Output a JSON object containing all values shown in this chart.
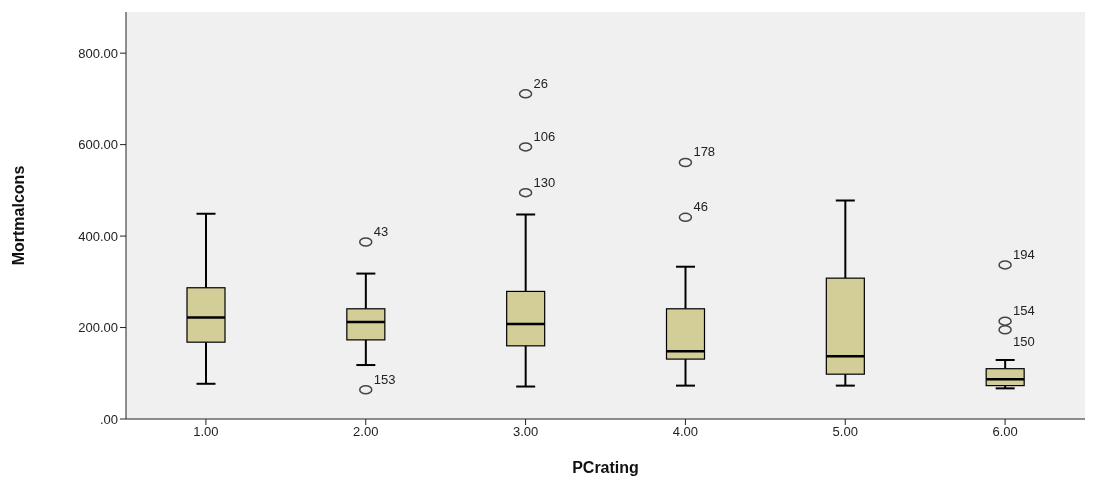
{
  "chart_data": {
    "type": "box",
    "xlabel": "PCrating",
    "ylabel": "Mortmalcons",
    "categories": [
      "1.00",
      "2.00",
      "3.00",
      "4.00",
      "5.00",
      "6.00"
    ],
    "color": "#d3cd97",
    "boxes": [
      {
        "low": 77,
        "q1": 168,
        "median": 222,
        "q3": 287,
        "high": 449
      },
      {
        "low": 118,
        "q1": 173,
        "median": 212,
        "q3": 241,
        "high": 318,
        "outliers": [
          387,
          64
        ]
      },
      {
        "low": 71,
        "q1": 160,
        "median": 208,
        "q3": 279,
        "high": 447,
        "outliers": [
          495,
          595,
          711
        ]
      },
      {
        "low": 73,
        "q1": 131,
        "median": 148,
        "q3": 241,
        "high": 333,
        "outliers": [
          441,
          561
        ]
      },
      {
        "low": 73,
        "q1": 98,
        "median": 137,
        "q3": 308,
        "high": 478
      },
      {
        "low": 67,
        "q1": 73,
        "median": 87,
        "q3": 110,
        "high": 129,
        "outliers": [
          214,
          195,
          337
        ]
      }
    ],
    "ylim": [
      0,
      890
    ],
    "yticks": [
      {
        "value": 0,
        "label": ".00"
      },
      {
        "value": 200,
        "label": "200.00"
      },
      {
        "value": 400,
        "label": "400.00"
      },
      {
        "value": 600,
        "label": "600.00"
      },
      {
        "value": 800,
        "label": "800.00"
      }
    ],
    "annotations": [
      "43",
      "153",
      "130",
      "106",
      "26",
      "46",
      "178",
      "154",
      "150",
      "194"
    ]
  }
}
